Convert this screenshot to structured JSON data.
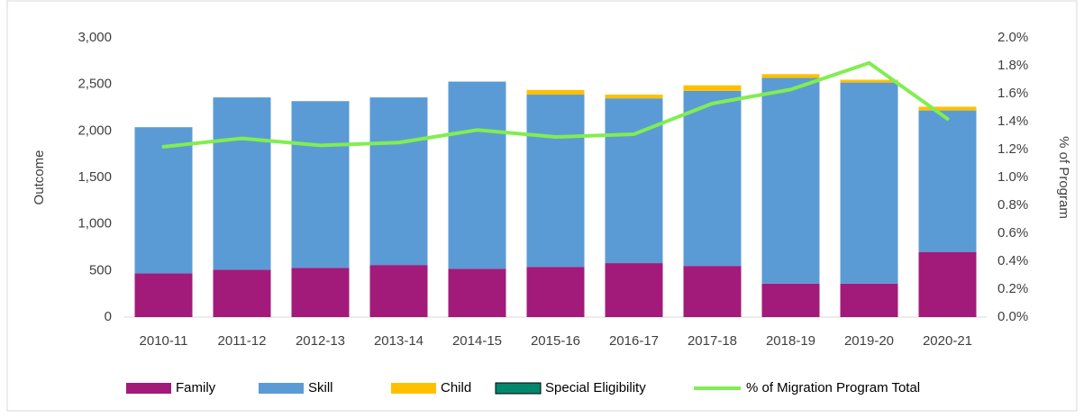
{
  "chart_data": {
    "type": "bar",
    "stacked": true,
    "y_label": "Outcome",
    "y2_label": "% of Program",
    "categories": [
      "2010-11",
      "2011-12",
      "2012-13",
      "2013-14",
      "2014-15",
      "2015-16",
      "2016-17",
      "2017-18",
      "2018-19",
      "2019-20",
      "2020-21"
    ],
    "series": [
      {
        "name": "Family",
        "color": "#a21b7a",
        "values": [
          470,
          510,
          530,
          560,
          520,
          540,
          580,
          550,
          360,
          360,
          700
        ]
      },
      {
        "name": "Skill",
        "color": "#5b9bd5",
        "values": [
          1570,
          1850,
          1790,
          1800,
          2010,
          1850,
          1770,
          1880,
          2210,
          2160,
          1520
        ]
      },
      {
        "name": "Child",
        "color": "#ffc000",
        "values": [
          0,
          0,
          0,
          0,
          0,
          50,
          40,
          60,
          40,
          30,
          40
        ]
      },
      {
        "name": "Special Eligibility",
        "color": "#00876c",
        "values": [
          0,
          0,
          0,
          0,
          0,
          0,
          0,
          0,
          0,
          0,
          0
        ]
      },
      {
        "name": "% of Migration Program Total",
        "color": "#80ee50",
        "type": "line",
        "axis": "y2",
        "values": [
          1.22,
          1.28,
          1.23,
          1.25,
          1.34,
          1.29,
          1.31,
          1.53,
          1.63,
          1.82,
          1.42
        ]
      }
    ],
    "ylim": [
      0,
      3000
    ],
    "yticks": [
      0,
      500,
      {
        "value": 1000,
        "label": "1,000"
      },
      {
        "value": 1500,
        "label": "1,500"
      },
      {
        "value": 2000,
        "label": "2,000"
      },
      {
        "value": 2500,
        "label": "2,500"
      },
      {
        "value": 3000,
        "label": "3,000"
      }
    ],
    "y2lim": [
      0,
      2
    ],
    "y2ticks": [
      {
        "value": 0,
        "label": "0.0%"
      },
      {
        "value": 0.2,
        "label": "0.2%"
      },
      {
        "value": 0.4,
        "label": "0.4%"
      },
      {
        "value": 0.6,
        "label": "0.6%"
      },
      {
        "value": 0.8,
        "label": "0.8%"
      },
      {
        "value": 1,
        "label": "1.0%"
      },
      {
        "value": 1.2,
        "label": "1.2%"
      },
      {
        "value": 1.4,
        "label": "1.4%"
      },
      {
        "value": 1.6,
        "label": "1.6%"
      },
      {
        "value": 1.8,
        "label": "1.8%"
      },
      {
        "value": 2,
        "label": "2.0%"
      }
    ],
    "grid": false,
    "legend": "bottom"
  }
}
